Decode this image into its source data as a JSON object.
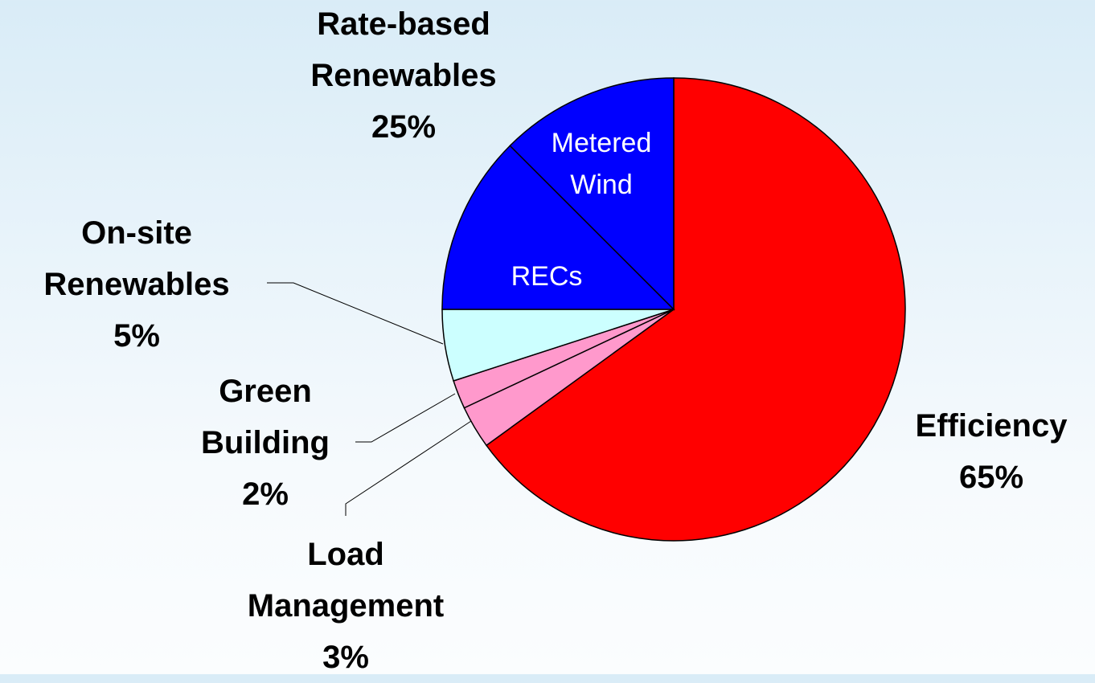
{
  "chart_data": {
    "type": "pie",
    "categories": [
      "Efficiency",
      "Load Management",
      "Green Building",
      "On-site Renewables",
      "Rate-based Renewables"
    ],
    "values": [
      65,
      3,
      2,
      5,
      25
    ],
    "value_labels": [
      "65%",
      "3%",
      "2%",
      "5%",
      "25%"
    ],
    "colors": [
      "#ff0000",
      "#ff99cc",
      "#ff99cc",
      "#ccffff",
      "#0000ff"
    ],
    "breakdown": [
      null,
      null,
      null,
      null,
      {
        "categories": [
          "RECs",
          "Metered Wind"
        ],
        "values": [
          12.5,
          12.5
        ]
      }
    ]
  }
}
